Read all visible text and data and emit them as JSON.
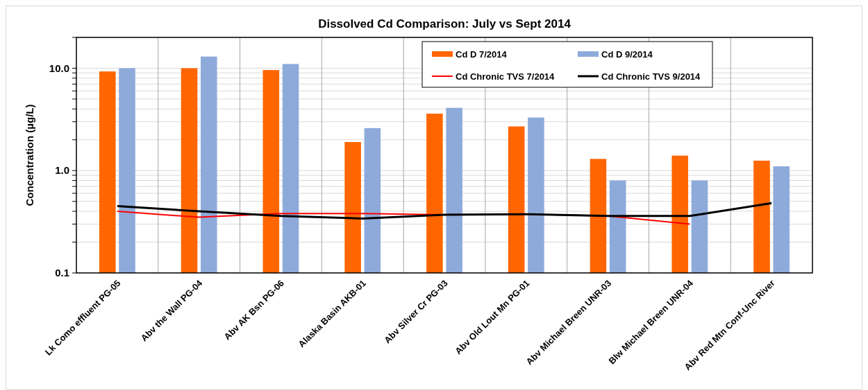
{
  "chart_data": {
    "type": "bar",
    "title": "Dissolved Cd Comparison: July vs Sept 2014",
    "ylabel": "Concentration (µg/L)",
    "categories": [
      "Lk Como effluent PG-05",
      "Abv the Wall PG-04",
      "Abv AK Bsn PG-06",
      "Alaska Basin AKB-01",
      "Abv Silver Cr PG-03",
      "Abv Old Lout Mn PG-01",
      "Abv Michael Breen UNR-03",
      "Blw Michael Breen UNR-04",
      "Abv Red Mtn Conf-Unc River"
    ],
    "series": [
      {
        "name": "Cd D 7/2014",
        "color": "#ff6600",
        "values": [
          9.3,
          10,
          9.6,
          1.9,
          3.6,
          2.7,
          1.3,
          1.4,
          1.25
        ]
      },
      {
        "name": "Cd D 9/2014",
        "color": "#8eaadb",
        "values": [
          10,
          13,
          11,
          2.6,
          4.1,
          3.3,
          0.8,
          0.8,
          1.1
        ]
      },
      {
        "name": "Cd Chronic TVS 7/2014",
        "type": "line",
        "color": "#ff0000",
        "values": [
          0.4,
          0.35,
          0.38,
          0.38,
          0.37,
          0.375,
          0.36,
          0.3,
          null
        ]
      },
      {
        "name": "Cd Chronic TVS 9/2014",
        "type": "line",
        "color": "#000000",
        "values": [
          0.45,
          0.4,
          0.36,
          0.34,
          0.37,
          0.375,
          0.36,
          0.36,
          0.48
        ]
      }
    ],
    "log": true,
    "ylim": [
      0.1,
      20
    ],
    "yticks": [
      {
        "value": 0.1,
        "label": "0.1"
      },
      {
        "value": 0.2,
        "label": null
      },
      {
        "value": 0.3,
        "label": null
      },
      {
        "value": 0.4,
        "label": null
      },
      {
        "value": 0.5,
        "label": null
      },
      {
        "value": 0.6,
        "label": null
      },
      {
        "value": 0.7,
        "label": null
      },
      {
        "value": 0.8,
        "label": null
      },
      {
        "value": 0.9,
        "label": null
      },
      {
        "value": 1,
        "label": "1.0"
      },
      {
        "value": 2,
        "label": null
      },
      {
        "value": 3,
        "label": null
      },
      {
        "value": 4,
        "label": null
      },
      {
        "value": 5,
        "label": null
      },
      {
        "value": 6,
        "label": null
      },
      {
        "value": 7,
        "label": null
      },
      {
        "value": 8,
        "label": null
      },
      {
        "value": 9,
        "label": null
      },
      {
        "value": 10,
        "label": "10.0"
      },
      {
        "value": 20,
        "label": null
      }
    ],
    "grid": true,
    "legend": "top right"
  }
}
